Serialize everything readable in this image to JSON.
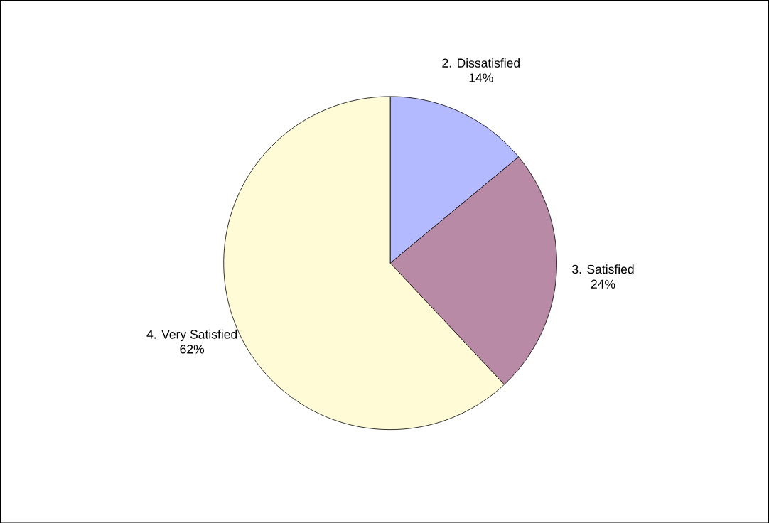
{
  "chart_data": {
    "type": "pie",
    "categories": [
      "2. Dissatisfied",
      "3. Satisfied",
      "4. Very Satisfied"
    ],
    "values": [
      14,
      24,
      62
    ],
    "value_labels": [
      "14%",
      "24%",
      "62%"
    ],
    "colors": [
      "#b4baff",
      "#b98aa5",
      "#fffbd6"
    ]
  }
}
